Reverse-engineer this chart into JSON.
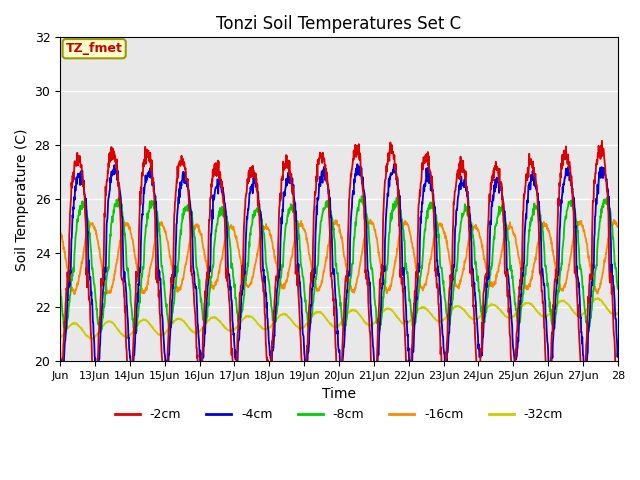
{
  "title": "Tonzi Soil Temperatures Set C",
  "xlabel": "Time",
  "ylabel": "Soil Temperature (C)",
  "ylim": [
    20,
    32
  ],
  "xlim_days": [
    0,
    16
  ],
  "annotation": "TZ_fmet",
  "annotation_color": "#cc0000",
  "annotation_bg": "#ffffcc",
  "annotation_border": "#999900",
  "bg_color": "#e8e8e8",
  "series": [
    {
      "label": "-2cm",
      "color": "#dd0000",
      "amp": 4.2,
      "phase": 0.0,
      "mean": 23.2,
      "asymmetry": 2.5
    },
    {
      "label": "-4cm",
      "color": "#0000dd",
      "amp": 3.5,
      "phase": 0.06,
      "mean": 23.3,
      "asymmetry": 2.2
    },
    {
      "label": "-8cm",
      "color": "#00cc00",
      "amp": 2.2,
      "phase": 0.15,
      "mean": 23.5,
      "asymmetry": 1.8
    },
    {
      "label": "-16cm",
      "color": "#ff8800",
      "amp": 1.2,
      "phase": 0.4,
      "mean": 23.8,
      "asymmetry": 1.2
    },
    {
      "label": "-32cm",
      "color": "#cccc00",
      "amp": 0.28,
      "phase": 0.9,
      "mean": 22.0,
      "asymmetry": 1.0
    }
  ],
  "xtick_labels": [
    "Jun",
    "13Jun",
    "14Jun",
    "15Jun",
    "16Jun",
    "17Jun",
    "18Jun",
    "19Jun",
    "20Jun",
    "21Jun",
    "22Jun",
    "23Jun",
    "24Jun",
    "25Jun",
    "26Jun",
    "27Jun",
    "28"
  ],
  "xtick_positions": [
    0,
    1,
    2,
    3,
    4,
    5,
    6,
    7,
    8,
    9,
    10,
    11,
    12,
    13,
    14,
    15,
    16
  ],
  "ytick_labels": [
    "20",
    "22",
    "24",
    "26",
    "28",
    "30",
    "32"
  ],
  "ytick_positions": [
    20,
    22,
    24,
    26,
    28,
    30,
    32
  ],
  "linewidth": 1.3,
  "legend_ncol": 5
}
